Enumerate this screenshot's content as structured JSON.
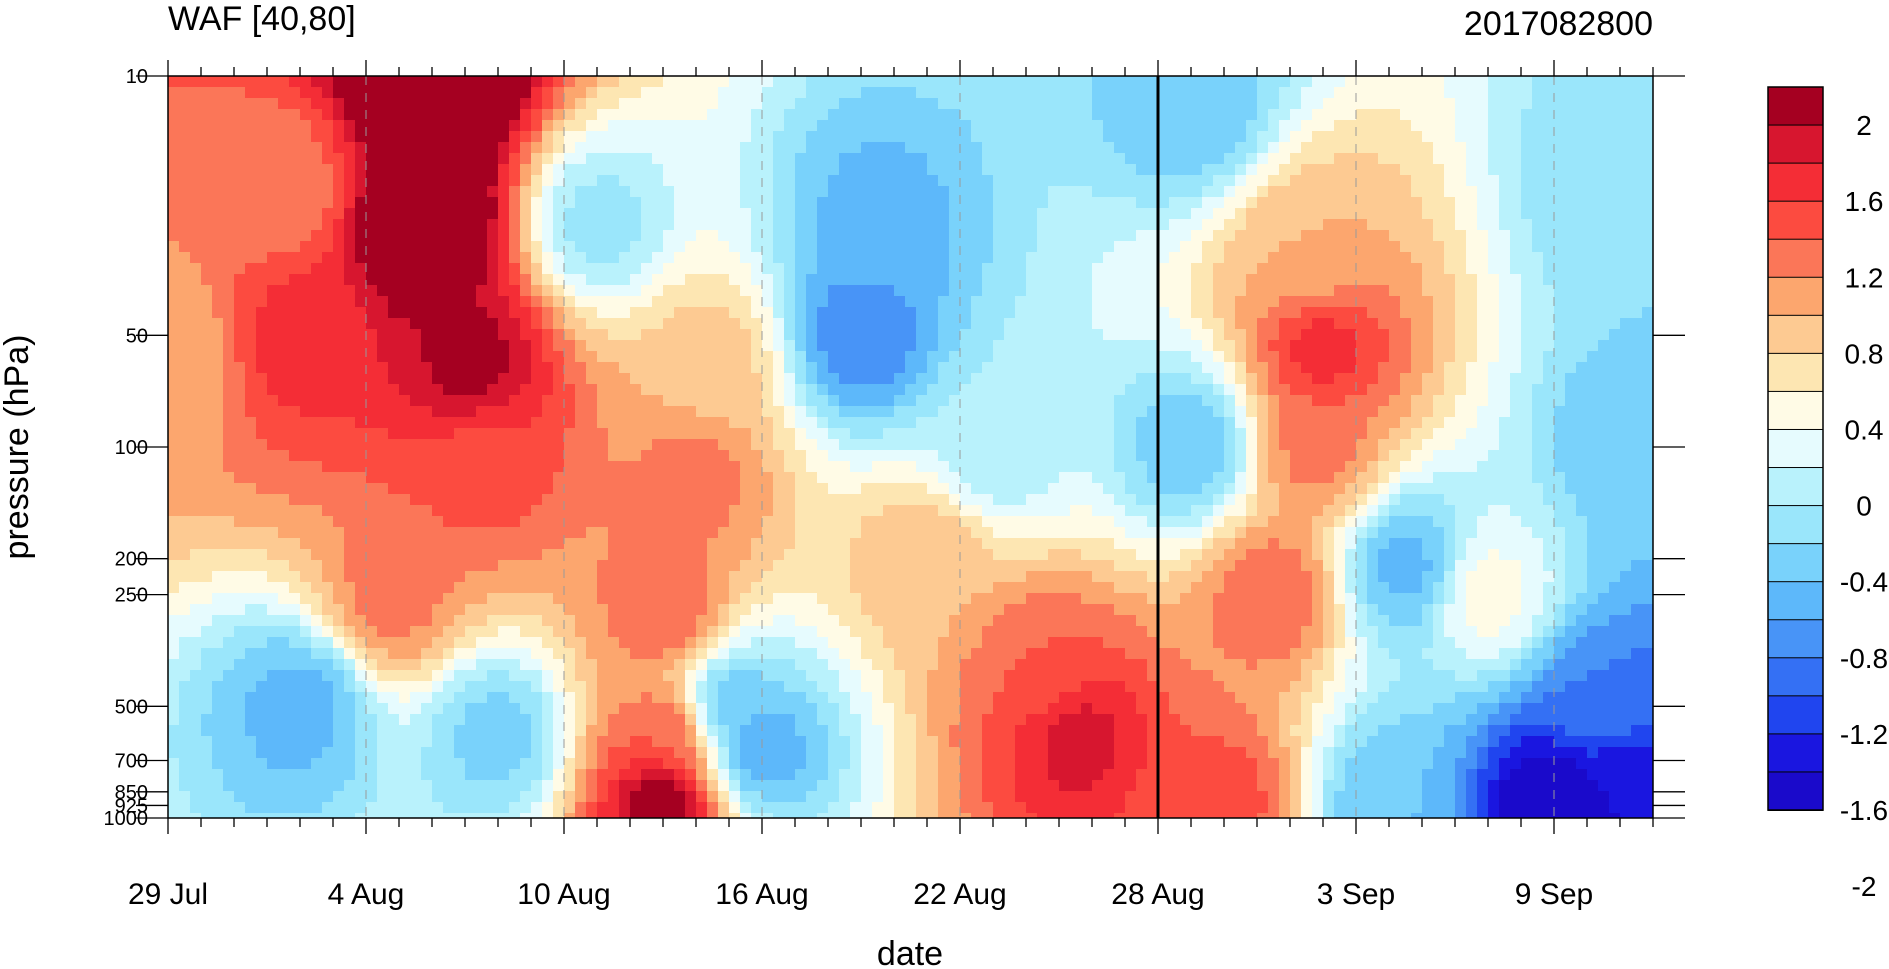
{
  "chart_data": {
    "type": "heatmap",
    "title": "WAF [40,80]",
    "subtitle": "2017082800",
    "xlabel": "date",
    "ylabel": "pressure (hPa)",
    "x_tick_labels": [
      "29 Jul",
      "4 Aug",
      "10 Aug",
      "16 Aug",
      "22 Aug",
      "28 Aug",
      "3 Sep",
      "9 Sep"
    ],
    "x_range_days": [
      0,
      45
    ],
    "y_ticks": [
      10,
      50,
      100,
      200,
      250,
      500,
      700,
      850,
      925,
      1000
    ],
    "y_tick_labels": [
      "10",
      "50",
      "100",
      "200",
      "250",
      "500",
      "700",
      "850",
      "925",
      "1000"
    ],
    "y_scale": "log",
    "ylim": [
      1000,
      10
    ],
    "vertical_marker": "28 Aug",
    "colorbar": {
      "ticks": [
        2,
        1.6,
        1.2,
        0.8,
        0.4,
        0,
        -0.4,
        -0.8,
        -1.2,
        -1.6,
        -2
      ],
      "tick_labels": [
        "2",
        "1.6",
        "1.2",
        "0.8",
        "0.4",
        "0",
        "-0.4",
        "-0.8",
        "-1.2",
        "-1.6",
        "-2"
      ],
      "colors_top_to_bottom": [
        "#a50021",
        "#d7162f",
        "#f42d36",
        "#fc4b40",
        "#fb7658",
        "#fca66e",
        "#fdca92",
        "#fde6b2",
        "#fffbe6",
        "#e6fbfe",
        "#b9f2fc",
        "#9ae6fb",
        "#79d2fb",
        "#5db8fa",
        "#4894f7",
        "#3470f4",
        "#2045ef",
        "#1a16e0",
        "#1a0acb"
      ]
    },
    "features": [
      {
        "day": 8,
        "p": 10,
        "v": 2.2
      },
      {
        "day": 7.8,
        "p": 25,
        "v": 2.0
      },
      {
        "day": 9.2,
        "p": 60,
        "v": 1.5
      },
      {
        "day": 9.5,
        "p": 110,
        "v": 0.9
      },
      {
        "day": 4,
        "p": 50,
        "v": 1.1
      },
      {
        "day": 3.5,
        "p": 20,
        "v": 0.6
      },
      {
        "day": 0,
        "p": 55,
        "v": 0.4
      },
      {
        "day": 6.8,
        "p": 250,
        "v": 0.7
      },
      {
        "day": 15,
        "p": 900,
        "v": 1.6
      },
      {
        "day": 15.2,
        "p": 600,
        "v": 0.8
      },
      {
        "day": 15.1,
        "p": 280,
        "v": 0.8
      },
      {
        "day": 16,
        "p": 120,
        "v": 0.7
      },
      {
        "day": 16.5,
        "p": 60,
        "v": 0.3
      },
      {
        "day": 27.5,
        "p": 600,
        "v": 1.3
      },
      {
        "day": 26.5,
        "p": 400,
        "v": 0.8
      },
      {
        "day": 23,
        "p": 200,
        "v": 0.4
      },
      {
        "day": 35,
        "p": 55,
        "v": 1.1
      },
      {
        "day": 34.8,
        "p": 100,
        "v": 0.7
      },
      {
        "day": 34.5,
        "p": 30,
        "v": 0.4
      },
      {
        "day": 33.5,
        "p": 250,
        "v": 0.8
      },
      {
        "day": 32,
        "p": 900,
        "v": 0.9
      },
      {
        "day": 21,
        "p": 50,
        "v": -1.4
      },
      {
        "day": 21.5,
        "p": 25,
        "v": -1.1
      },
      {
        "day": 18,
        "p": 650,
        "v": -1.2
      },
      {
        "day": 17,
        "p": 500,
        "v": -1.0
      },
      {
        "day": 4,
        "p": 500,
        "v": -1.1
      },
      {
        "day": 10,
        "p": 600,
        "v": -0.9
      },
      {
        "day": 37.5,
        "p": 210,
        "v": -1.1
      },
      {
        "day": 31,
        "p": 100,
        "v": -1.0
      },
      {
        "day": 31,
        "p": 12,
        "v": -1.0
      },
      {
        "day": 42,
        "p": 930,
        "v": -2.3
      },
      {
        "day": 44,
        "p": 800,
        "v": -2.0
      },
      {
        "day": 43.5,
        "p": 500,
        "v": -1.4
      },
      {
        "day": 44.5,
        "p": 100,
        "v": -1.0
      },
      {
        "day": 44,
        "p": 20,
        "v": -0.8
      },
      {
        "day": 37,
        "p": 920,
        "v": -1.0
      },
      {
        "day": 40,
        "p": 250,
        "v": -0.1
      },
      {
        "day": 13,
        "p": 25,
        "v": -0.7
      },
      {
        "day": 25,
        "p": 100,
        "v": -0.6
      }
    ]
  }
}
